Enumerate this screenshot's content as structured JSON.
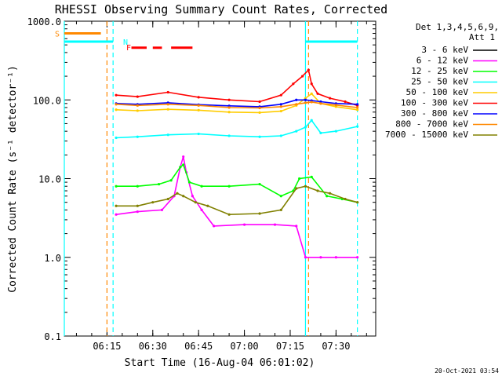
{
  "chart_data": {
    "type": "line",
    "title": "RHESSI Observing Summary Count Rates, Corrected",
    "xlabel": "Start Time (16-Aug-04 06:01:02)",
    "ylabel": "Corrected Count Rate (s⁻¹ detector⁻¹)",
    "y_scale": "log",
    "ylim": [
      0.1,
      1000.0
    ],
    "y_ticks": [
      {
        "value": 0.1,
        "label": "0.1"
      },
      {
        "value": 1.0,
        "label": "1.0"
      },
      {
        "value": 10.0,
        "label": "10.0"
      },
      {
        "value": 100.0,
        "label": "100.0"
      },
      {
        "value": 1000.0,
        "label": "1000.0"
      }
    ],
    "xlim": [
      "06:01:02",
      "07:43:00"
    ],
    "x_ticks": [
      "06:15",
      "06:30",
      "06:45",
      "07:00",
      "07:15",
      "07:30"
    ],
    "legend": {
      "header1": "Det 1,3,4,5,6,9,",
      "header2": "Att 1",
      "placement": "right"
    },
    "series": [
      {
        "name": "3 - 6 keV",
        "color": "#000000",
        "x": [],
        "values": []
      },
      {
        "name": "6 - 12 keV",
        "color": "#ff00ff",
        "x": [
          "06:18",
          "06:25",
          "06:33",
          "06:37",
          "06:39",
          "06:40",
          "06:41",
          "06:43",
          "06:46",
          "06:50",
          "07:00",
          "07:10",
          "07:17",
          "07:20",
          "07:25",
          "07:30",
          "07:37"
        ],
        "values": [
          3.5,
          3.8,
          4.0,
          6.0,
          14.0,
          19.0,
          12.0,
          6.0,
          4.0,
          2.5,
          2.6,
          2.6,
          2.5,
          1.0,
          1.0,
          1.0,
          1.0
        ]
      },
      {
        "name": "12 - 25 keV",
        "color": "#00ff00",
        "x": [
          "06:18",
          "06:25",
          "06:32",
          "06:36",
          "06:39",
          "06:40",
          "06:42",
          "06:46",
          "06:55",
          "07:05",
          "07:12",
          "07:16",
          "07:18",
          "07:22",
          "07:27",
          "07:32",
          "07:37"
        ],
        "values": [
          8.0,
          8.0,
          8.5,
          9.5,
          14.0,
          15.0,
          9.0,
          8.0,
          8.0,
          8.5,
          6.0,
          7.0,
          10.0,
          10.5,
          6.0,
          5.5,
          5.0
        ]
      },
      {
        "name": "25 - 50 keV",
        "color": "#00ffff",
        "x": [
          "06:18",
          "06:25",
          "06:35",
          "06:45",
          "06:55",
          "07:05",
          "07:12",
          "07:17",
          "07:20",
          "07:22",
          "07:25",
          "07:30",
          "07:37"
        ],
        "values": [
          33,
          34,
          36,
          37,
          35,
          34,
          35,
          40,
          45,
          55,
          38,
          40,
          46
        ]
      },
      {
        "name": "50 - 100 keV",
        "color": "#ffcc00",
        "x": [
          "06:18",
          "06:25",
          "06:35",
          "06:45",
          "06:55",
          "07:05",
          "07:12",
          "07:17",
          "07:20",
          "07:22",
          "07:25",
          "07:30",
          "07:37"
        ],
        "values": [
          75,
          73,
          76,
          74,
          70,
          69,
          72,
          85,
          105,
          120,
          90,
          82,
          75
        ]
      },
      {
        "name": "100 - 300 keV",
        "color": "#ff0000",
        "x": [
          "06:18",
          "06:25",
          "06:35",
          "06:45",
          "06:55",
          "07:05",
          "07:12",
          "07:16",
          "07:19",
          "07:21",
          "07:22",
          "07:24",
          "07:28",
          "07:33",
          "07:37"
        ],
        "values": [
          115,
          110,
          125,
          108,
          100,
          95,
          115,
          160,
          200,
          240,
          160,
          120,
          105,
          95,
          85
        ]
      },
      {
        "name": "300 - 800 keV",
        "color": "#0000ff",
        "x": [
          "06:18",
          "06:25",
          "06:35",
          "06:45",
          "06:55",
          "07:05",
          "07:12",
          "07:17",
          "07:20",
          "07:22",
          "07:25",
          "07:30",
          "07:37"
        ],
        "values": [
          90,
          88,
          92,
          87,
          84,
          82,
          88,
          100,
          100,
          98,
          95,
          90,
          88
        ]
      },
      {
        "name": "800 - 7000 keV",
        "color": "#ff8800",
        "x": [
          "06:18",
          "06:25",
          "06:35",
          "06:45",
          "06:55",
          "07:05",
          "07:12",
          "07:17",
          "07:20",
          "07:22",
          "07:25",
          "07:30",
          "07:37"
        ],
        "values": [
          88,
          85,
          88,
          85,
          80,
          79,
          82,
          88,
          92,
          94,
          90,
          86,
          80
        ]
      },
      {
        "name": "7000 - 15000 keV",
        "color": "#808000",
        "x": [
          "06:18",
          "06:25",
          "06:30",
          "06:35",
          "06:38",
          "06:40",
          "06:44",
          "06:48",
          "06:55",
          "07:05",
          "07:12",
          "07:17",
          "07:20",
          "07:24",
          "07:28",
          "07:33",
          "07:37"
        ],
        "values": [
          4.5,
          4.5,
          5.0,
          5.5,
          6.5,
          6.0,
          5.0,
          4.5,
          3.5,
          3.6,
          4.0,
          7.5,
          8.0,
          7.0,
          6.5,
          5.5,
          5.0
        ]
      }
    ],
    "state_flags": [
      {
        "label": "S",
        "color": "#ff8800",
        "value": 700.0,
        "segments": [
          [
            "06:01:02",
            "06:13"
          ]
        ]
      },
      {
        "label": "N",
        "color": "#00ffff",
        "value": 550.0,
        "segments": [
          [
            "06:01:02",
            "06:17"
          ],
          [
            "07:20",
            "07:37"
          ]
        ]
      },
      {
        "label": "F",
        "color": "#ff0000",
        "value": 460.0,
        "segments": [
          [
            "06:23",
            "06:28"
          ],
          [
            "06:30",
            "06:33"
          ],
          [
            "06:36",
            "06:43"
          ]
        ]
      }
    ],
    "vertical_markers": [
      {
        "time": "06:01:02",
        "color": "#00ffff",
        "style": "solid"
      },
      {
        "time": "06:15",
        "color": "#ff8800",
        "style": "dashed"
      },
      {
        "time": "06:17",
        "color": "#00ffff",
        "style": "dashed"
      },
      {
        "time": "07:20",
        "color": "#00ffff",
        "style": "solid"
      },
      {
        "time": "07:21",
        "color": "#ff8800",
        "style": "dashed"
      },
      {
        "time": "07:37",
        "color": "#00ffff",
        "style": "dashed"
      }
    ],
    "footer_timestamp": "20-Oct-2021 03:54"
  }
}
